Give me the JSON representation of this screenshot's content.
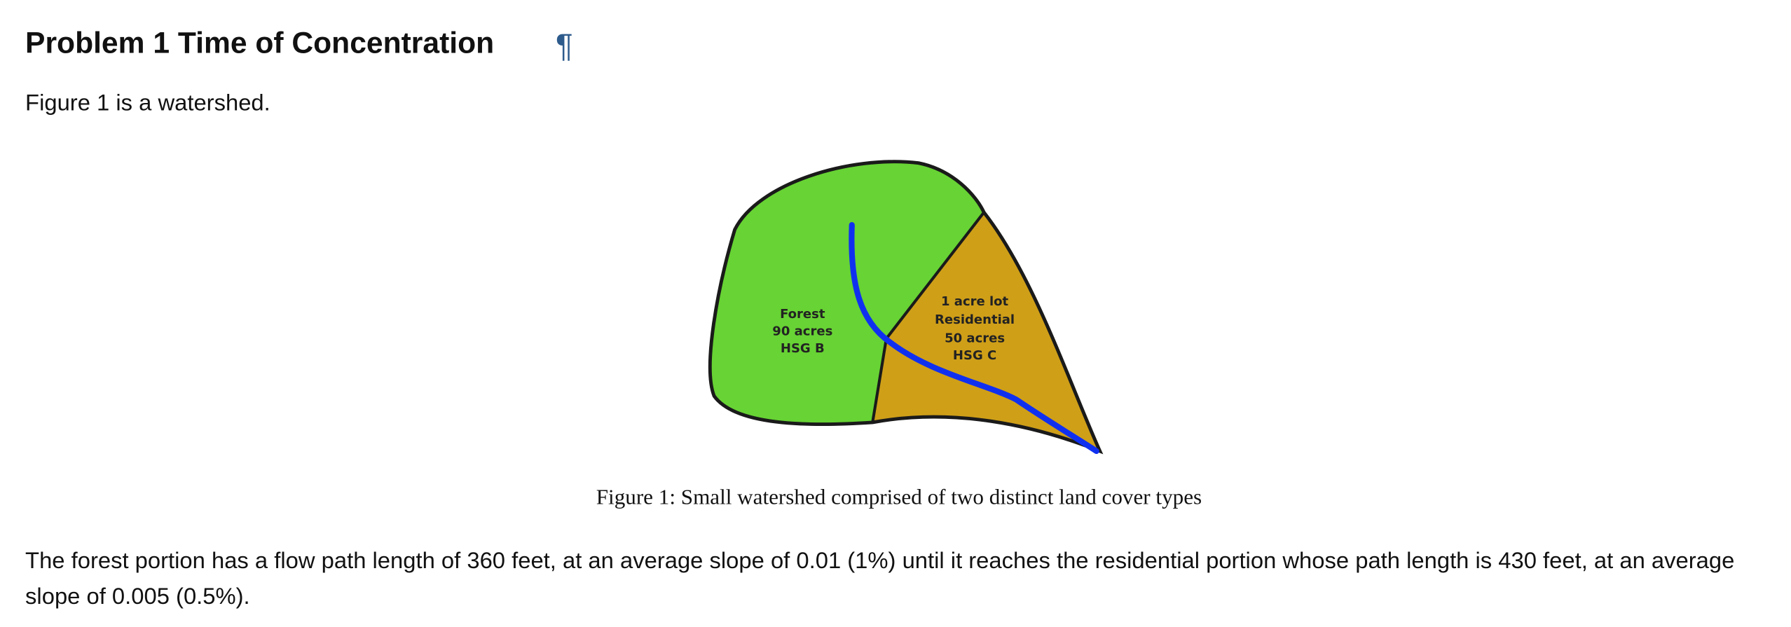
{
  "header": {
    "title": "Problem 1 Time of Concentration",
    "anchor": "¶"
  },
  "paragraphs": [
    "Figure 1 is a watershed.",
    "The forest portion has a flow path length of 360 feet, at an average slope of 0.01 (1%) until it reaches the residential portion whose path length is 430 feet, at an average slope of 0.005 (0.5%)."
  ],
  "figure": {
    "forest_label": [
      "Forest",
      "90 acres",
      "HSG B"
    ],
    "residential_label": [
      "1 acre lot",
      "Residential",
      "50 acres",
      "HSG C"
    ],
    "caption": "Figure 1: Small watershed comprised of two distinct land cover types"
  }
}
